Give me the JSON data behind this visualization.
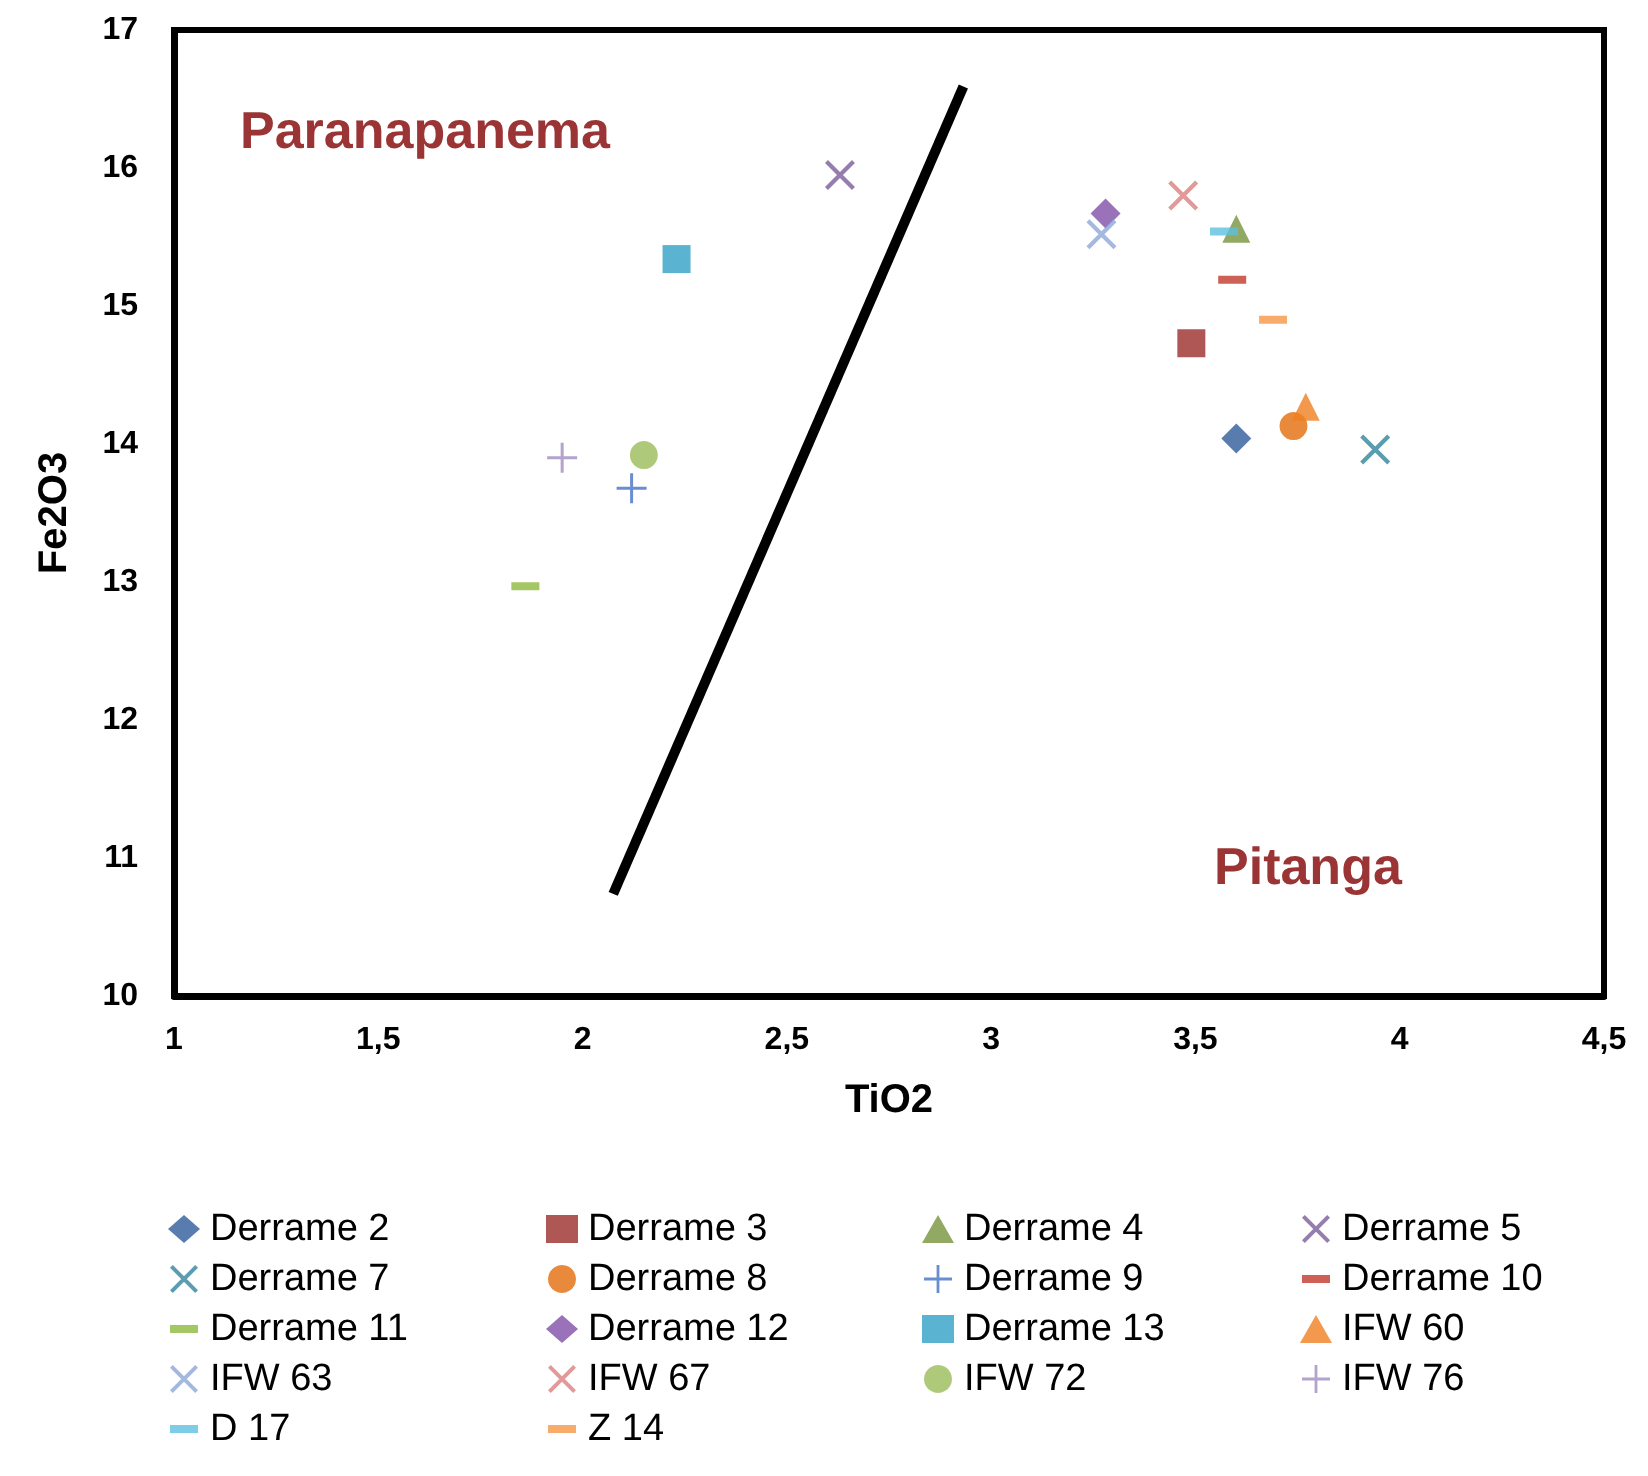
{
  "chart_data": {
    "type": "scatter",
    "xlabel": "TiO2",
    "ylabel": "Fe2O3",
    "annotations": [
      "Paranapanema",
      "Pitanga"
    ],
    "xlim": [
      1,
      4.5
    ],
    "ylim": [
      10,
      17
    ],
    "xticks": [
      1,
      {
        "value": 1.5,
        "label": "1,5"
      },
      2,
      {
        "value": 2.5,
        "label": "2,5"
      },
      3,
      {
        "value": 3.5,
        "label": "3,5"
      },
      4,
      {
        "value": 4.5,
        "label": "4,5"
      }
    ],
    "yticks": [
      10,
      11,
      12,
      13,
      14,
      15,
      16,
      17
    ],
    "grid": false,
    "legend": "bottom",
    "series": [
      {
        "type": "line",
        "x": [
          2.075,
          2.932
        ],
        "values": [
          10.74,
          16.59
        ],
        "color": "#000000",
        "marker": "none",
        "line_style": "solid"
      },
      {
        "name": "Derrame 2",
        "x": [
          3.6
        ],
        "values": [
          14.04
        ],
        "color": "#2f5b9b",
        "marker": "diamond"
      },
      {
        "name": "Derrame 3",
        "x": [
          3.49
        ],
        "values": [
          14.73
        ],
        "color": "#9b2d2a",
        "marker": "square"
      },
      {
        "name": "Derrame 4",
        "x": [
          3.6
        ],
        "values": [
          15.56
        ],
        "color": "#77933c",
        "marker": "triangle"
      },
      {
        "name": "Derrame 5",
        "x": [
          2.63
        ],
        "values": [
          15.95
        ],
        "color": "#7a5c99",
        "marker": "x"
      },
      {
        "name": "Derrame 7",
        "x": [
          3.94
        ],
        "values": [
          13.96
        ],
        "color": "#31859c",
        "marker": "cross"
      },
      {
        "name": "Derrame 8",
        "x": [
          3.74
        ],
        "values": [
          14.13
        ],
        "color": "#e46c0a",
        "marker": "circle"
      },
      {
        "name": "Derrame 9",
        "x": [
          2.12
        ],
        "values": [
          13.68
        ],
        "color": "#4472c4",
        "marker": "plus"
      },
      {
        "name": "Derrame 10",
        "x": [
          3.59
        ],
        "values": [
          15.19
        ],
        "color": "#c0392b"
      },
      {
        "name": "Derrame 11",
        "x": [
          1.86
        ],
        "values": [
          12.97
        ],
        "color": "#8db83c"
      },
      {
        "name": "Derrame 12",
        "x": [
          3.28
        ],
        "values": [
          15.67
        ],
        "color": "#7f4fa8",
        "marker": "diamond"
      },
      {
        "name": "Derrame 13",
        "x": [
          2.23
        ],
        "values": [
          15.34
        ],
        "color": "#31a0c4",
        "marker": "square"
      },
      {
        "name": "IFW 60",
        "x": [
          3.77
        ],
        "values": [
          14.27
        ],
        "color": "#f08020",
        "marker": "triangle"
      },
      {
        "name": "IFW 63",
        "x": [
          3.27
        ],
        "values": [
          15.52
        ],
        "color": "#8ea8d8",
        "marker": "x"
      },
      {
        "name": "IFW 67",
        "x": [
          3.47
        ],
        "values": [
          15.8
        ],
        "color": "#d98080",
        "marker": "cross"
      },
      {
        "name": "IFW 72",
        "x": [
          2.15
        ],
        "values": [
          13.92
        ],
        "color": "#9bbb59",
        "marker": "circle"
      },
      {
        "name": "IFW 76",
        "x": [
          1.95
        ],
        "values": [
          13.9
        ],
        "color": "#a08cc0",
        "marker": "plus"
      },
      {
        "name": "D 17",
        "x": [
          3.57
        ],
        "values": [
          15.54
        ],
        "color": "#5bc0de"
      },
      {
        "name": "Z 14",
        "x": [
          3.69
        ],
        "values": [
          14.9
        ],
        "color": "#f79646"
      }
    ]
  }
}
